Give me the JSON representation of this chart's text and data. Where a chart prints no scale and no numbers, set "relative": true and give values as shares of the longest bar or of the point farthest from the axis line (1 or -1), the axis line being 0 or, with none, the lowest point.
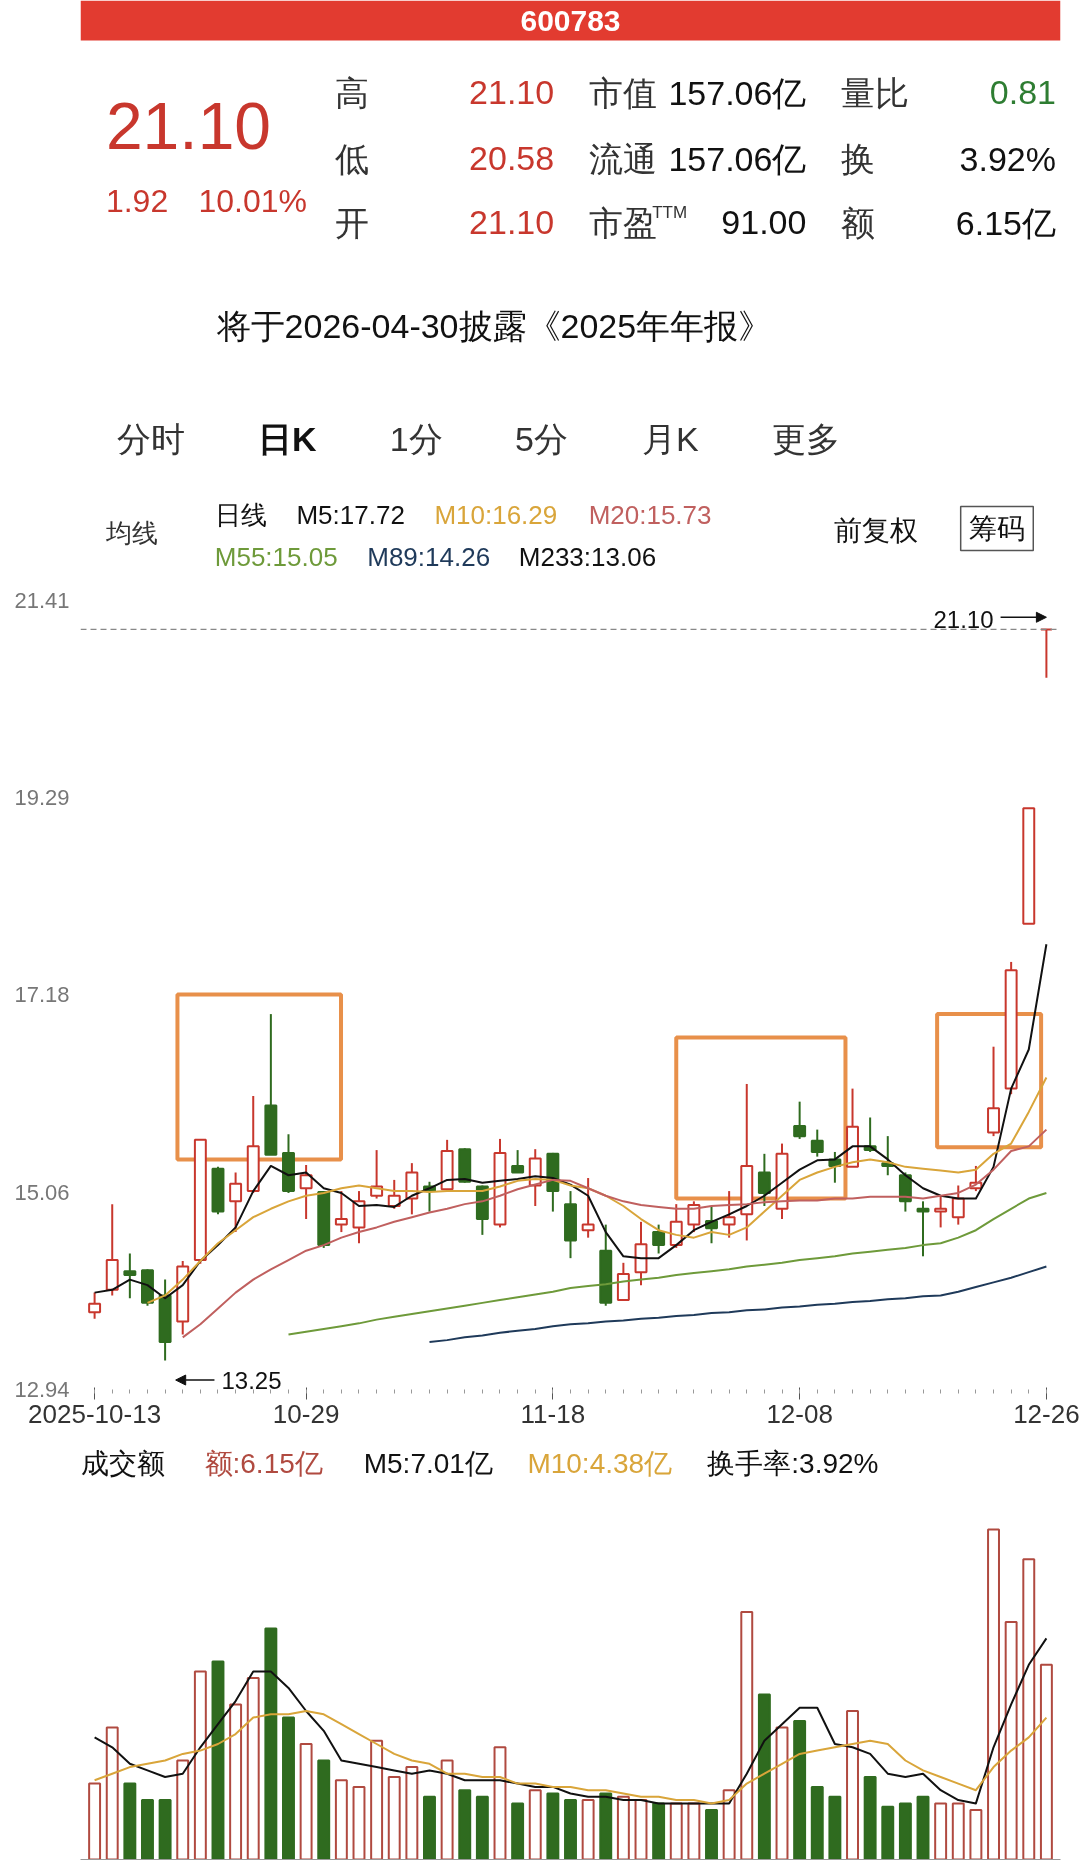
{
  "chart_data": [
    {
      "type": "other",
      "title": "600783",
      "annotations": [
        "21.10",
        "1.92",
        "10.01%",
        "高",
        "21.10",
        "市值",
        "157.06亿",
        "量比",
        "0.81",
        "低",
        "20.58",
        "流通",
        "157.06亿",
        "换",
        "3.92%",
        "开",
        "21.10",
        "市盈$^{TTM}$",
        "91.00",
        "额",
        "6.15亿",
        "将于2026-04-30披露《2025年年报》",
        "分时",
        "日K",
        "1分",
        "5分",
        "月K",
        "更多",
        "均线",
        "日线",
        "前复权",
        "筹码"
      ]
    },
    {
      "type": "candlestick",
      "categories": [
        "2025-10-13",
        null,
        null,
        null,
        null,
        null,
        null,
        null,
        null,
        null,
        null,
        null,
        "10-29",
        null,
        null,
        null,
        null,
        null,
        null,
        null,
        null,
        null,
        null,
        null,
        null,
        null,
        "11-18",
        null,
        null,
        null,
        null,
        null,
        null,
        null,
        null,
        null,
        null,
        null,
        null,
        null,
        "12-08",
        null,
        null,
        null,
        null,
        null,
        null,
        null,
        null,
        null,
        null,
        null,
        null,
        null,
        "12-26"
      ],
      "ohlc": [
        [
          13.77,
          13.98,
          13.7,
          13.86
        ],
        [
          14.01,
          14.93,
          13.95,
          14.33
        ],
        [
          14.21,
          14.4,
          13.92,
          14.17
        ],
        [
          14.22,
          14.23,
          13.84,
          13.87
        ],
        [
          13.95,
          14.12,
          13.25,
          13.45
        ],
        [
          13.67,
          14.32,
          13.53,
          14.26
        ],
        [
          14.33,
          15.63,
          14.29,
          15.62
        ],
        [
          15.31,
          15.33,
          14.82,
          14.85
        ],
        [
          14.96,
          15.27,
          14.63,
          15.15
        ],
        [
          15.07,
          16.09,
          15.05,
          15.55
        ],
        [
          15.99,
          16.97,
          15.46,
          15.46
        ],
        [
          15.48,
          15.68,
          15.05,
          15.07
        ],
        [
          15.1,
          15.35,
          14.77,
          15.24
        ],
        [
          15.06,
          15.07,
          14.46,
          14.49
        ],
        [
          14.71,
          15.07,
          14.63,
          14.77
        ],
        [
          14.68,
          15.07,
          14.51,
          14.96
        ],
        [
          15.02,
          15.51,
          14.99,
          15.12
        ],
        [
          14.91,
          15.19,
          14.88,
          15.02
        ],
        [
          14.99,
          15.37,
          14.82,
          15.27
        ],
        [
          15.12,
          15.17,
          14.85,
          15.07
        ],
        [
          15.09,
          15.62,
          15.07,
          15.5
        ],
        [
          15.52,
          15.53,
          15.16,
          15.17
        ],
        [
          15.12,
          15.13,
          14.6,
          14.77
        ],
        [
          14.71,
          15.63,
          14.68,
          15.48
        ],
        [
          15.34,
          15.51,
          15.27,
          15.27
        ],
        [
          15.13,
          15.52,
          14.91,
          15.42
        ],
        [
          15.47,
          15.48,
          14.85,
          15.07
        ],
        [
          14.93,
          15.07,
          14.35,
          14.54
        ],
        [
          14.65,
          15.21,
          14.57,
          14.71
        ],
        [
          14.43,
          14.71,
          13.84,
          13.87
        ],
        [
          13.9,
          14.3,
          13.9,
          14.18
        ],
        [
          14.2,
          14.74,
          14.06,
          14.5
        ],
        [
          14.63,
          14.71,
          14.4,
          14.49
        ],
        [
          14.49,
          14.93,
          14.46,
          14.74
        ],
        [
          14.71,
          14.96,
          14.63,
          14.92
        ],
        [
          14.75,
          14.91,
          14.51,
          14.67
        ],
        [
          14.71,
          15.07,
          14.57,
          14.79
        ],
        [
          14.82,
          16.22,
          14.54,
          15.34
        ],
        [
          15.27,
          15.47,
          14.91,
          15.05
        ],
        [
          14.88,
          15.58,
          14.77,
          15.47
        ],
        [
          15.77,
          16.03,
          15.63,
          15.66
        ],
        [
          15.61,
          15.73,
          15.44,
          15.49
        ],
        [
          15.41,
          15.49,
          15.16,
          15.34
        ],
        [
          15.33,
          16.17,
          15.33,
          15.76
        ],
        [
          15.55,
          15.86,
          15.49,
          15.51
        ],
        [
          15.37,
          15.66,
          15.24,
          15.34
        ],
        [
          15.24,
          15.27,
          14.85,
          14.96
        ],
        [
          14.88,
          14.96,
          14.37,
          14.85
        ],
        [
          14.85,
          15.02,
          14.68,
          14.88
        ],
        [
          14.79,
          15.13,
          14.71,
          14.99
        ],
        [
          15.1,
          15.34,
          15.07,
          15.16
        ],
        [
          15.7,
          16.62,
          15.66,
          15.96
        ],
        [
          16.17,
          17.53,
          16.11,
          17.44
        ],
        [
          17.94,
          19.18,
          17.94,
          19.18
        ],
        [
          21.1,
          21.1,
          20.58,
          21.1
        ]
      ],
      "colors": [
        "#c8372d",
        "#c8372d",
        "#2f6b1f",
        "#2f6b1f",
        "#2f6b1f",
        "#c8372d",
        "#c8372d",
        "#2f6b1f",
        "#c8372d",
        "#c8372d",
        "#2f6b1f",
        "#2f6b1f",
        "#c8372d",
        "#2f6b1f",
        "#c8372d",
        "#c8372d",
        "#c8372d",
        "#c8372d",
        "#c8372d",
        "#2f6b1f",
        "#c8372d",
        "#2f6b1f",
        "#2f6b1f",
        "#c8372d",
        "#2f6b1f",
        "#c8372d",
        "#2f6b1f",
        "#2f6b1f",
        "#c8372d",
        "#2f6b1f",
        "#c8372d",
        "#c8372d",
        "#2f6b1f",
        "#c8372d",
        "#c8372d",
        "#2f6b1f",
        "#c8372d",
        "#c8372d",
        "#2f6b1f",
        "#c8372d",
        "#2f6b1f",
        "#2f6b1f",
        "#2f6b1f",
        "#c8372d",
        "#2f6b1f",
        "#2f6b1f",
        "#2f6b1f",
        "#2f6b1f",
        "#c8372d",
        "#c8372d",
        "#c8372d",
        "#c8372d",
        "#c8372d",
        "#c8372d",
        "#c8372d"
      ],
      "ylim": [
        12.94,
        21.41
      ],
      "yticks": [
        12.94,
        15.06,
        17.18,
        19.29,
        21.41
      ],
      "series": [
        {
          "name": "M5:17.72",
          "type": "line",
          "color": "#111111",
          "values": [
            13.98,
            14.01,
            14.12,
            14.06,
            13.92,
            14.06,
            14.32,
            14.49,
            14.68,
            15.07,
            15.34,
            15.24,
            15.27,
            15.1,
            15.05,
            14.91,
            14.92,
            14.9,
            15.02,
            15.1,
            15.19,
            15.2,
            15.16,
            15.18,
            15.2,
            15.23,
            15.21,
            15.14,
            15.02,
            14.63,
            14.37,
            14.35,
            14.35,
            14.49,
            14.65,
            14.74,
            14.82,
            14.91,
            15.02,
            15.16,
            15.3,
            15.4,
            15.41,
            15.55,
            15.55,
            15.41,
            15.24,
            15.1,
            15.02,
            14.99,
            14.99,
            15.33,
            16.17,
            16.59,
            17.72
          ]
        },
        {
          "name": "M10:16.29",
          "type": "line",
          "color": "#d9a53a",
          "values": [
            null,
            null,
            null,
            13.87,
            13.95,
            14.12,
            14.32,
            14.51,
            14.65,
            14.79,
            14.88,
            14.96,
            15.02,
            15.05,
            15.1,
            15.13,
            15.1,
            15.07,
            15.07,
            15.06,
            15.07,
            15.07,
            15.07,
            15.12,
            15.18,
            15.2,
            15.19,
            15.13,
            15.1,
            15.02,
            14.91,
            14.77,
            14.65,
            14.6,
            14.57,
            14.63,
            14.6,
            14.68,
            14.85,
            15.02,
            15.19,
            15.27,
            15.33,
            15.38,
            15.41,
            15.38,
            15.33,
            15.31,
            15.29,
            15.27,
            15.3,
            15.47,
            15.58,
            15.92,
            16.29
          ]
        },
        {
          "name": "M20:15.73",
          "type": "line",
          "color": "#c0605f",
          "values": [
            null,
            null,
            null,
            null,
            null,
            13.5,
            13.64,
            13.81,
            13.98,
            14.12,
            14.23,
            14.33,
            14.43,
            14.49,
            14.57,
            14.63,
            14.68,
            14.74,
            14.79,
            14.84,
            14.88,
            14.93,
            14.96,
            15.02,
            15.09,
            15.14,
            15.19,
            15.18,
            15.1,
            15.02,
            14.96,
            14.92,
            14.9,
            14.88,
            14.88,
            14.91,
            14.92,
            14.93,
            14.95,
            14.96,
            14.97,
            14.97,
            14.99,
            14.99,
            15.01,
            15.01,
            15.01,
            14.99,
            15.02,
            15.05,
            15.14,
            15.3,
            15.5,
            15.55,
            15.73
          ]
        },
        {
          "name": "M55:15.05",
          "type": "line",
          "color": "#6e9a3a",
          "values": [
            null,
            null,
            null,
            null,
            null,
            null,
            null,
            null,
            null,
            null,
            null,
            13.53,
            13.56,
            13.59,
            13.62,
            13.65,
            13.69,
            13.72,
            13.75,
            13.78,
            13.81,
            13.84,
            13.87,
            13.9,
            13.93,
            13.96,
            13.99,
            14.03,
            14.05,
            14.07,
            14.1,
            14.12,
            14.14,
            14.17,
            14.19,
            14.21,
            14.23,
            14.26,
            14.28,
            14.3,
            14.33,
            14.35,
            14.37,
            14.4,
            14.42,
            14.44,
            14.46,
            14.49,
            14.51,
            14.57,
            14.65,
            14.77,
            14.88,
            14.99,
            15.05
          ]
        },
        {
          "name": "M89:14.26",
          "type": "line",
          "color": "#1f3a5a",
          "values": [
            null,
            null,
            null,
            null,
            null,
            null,
            null,
            null,
            null,
            null,
            null,
            null,
            null,
            null,
            null,
            null,
            null,
            null,
            null,
            13.45,
            13.47,
            13.5,
            13.52,
            13.55,
            13.57,
            13.59,
            13.62,
            13.64,
            13.65,
            13.67,
            13.68,
            13.7,
            13.71,
            13.73,
            13.74,
            13.76,
            13.77,
            13.79,
            13.8,
            13.82,
            13.83,
            13.85,
            13.86,
            13.88,
            13.89,
            13.91,
            13.92,
            13.94,
            13.95,
            13.99,
            14.04,
            14.09,
            14.14,
            14.2,
            14.26
          ]
        }
      ],
      "ref_lines": [
        {
          "axis": "y",
          "value": 21.1,
          "line_style": "dashed",
          "color": "#888888",
          "label": "21.10"
        }
      ],
      "annotations": [
        "M233:13.06",
        "13.25"
      ]
    },
    {
      "type": "bar",
      "title": "成交额",
      "relative": true,
      "categories": [
        null,
        null,
        null,
        null,
        null,
        null,
        null,
        null,
        null,
        null,
        null,
        null,
        null,
        null,
        null,
        null,
        null,
        null,
        null,
        null,
        null,
        null,
        null,
        null,
        null,
        null,
        null,
        null,
        null,
        null,
        null,
        null,
        null,
        null,
        null,
        null,
        null,
        null,
        null,
        null,
        null,
        null,
        null,
        null,
        null,
        null,
        null,
        null,
        null,
        null,
        null,
        null,
        null,
        null,
        null
      ],
      "series": [
        {
          "name": "额:6.15亿",
          "type": "bar",
          "colors": [
            "#b04a40",
            "#b04a40",
            "#2f6b1f",
            "#2f6b1f",
            "#2f6b1f",
            "#b04a40",
            "#b04a40",
            "#2f6b1f",
            "#b04a40",
            "#b04a40",
            "#2f6b1f",
            "#2f6b1f",
            "#b04a40",
            "#2f6b1f",
            "#b04a40",
            "#b04a40",
            "#b04a40",
            "#b04a40",
            "#b04a40",
            "#2f6b1f",
            "#b04a40",
            "#2f6b1f",
            "#2f6b1f",
            "#b04a40",
            "#2f6b1f",
            "#b04a40",
            "#2f6b1f",
            "#2f6b1f",
            "#b04a40",
            "#2f6b1f",
            "#b04a40",
            "#b04a40",
            "#2f6b1f",
            "#b04a40",
            "#b04a40",
            "#2f6b1f",
            "#b04a40",
            "#b04a40",
            "#2f6b1f",
            "#b04a40",
            "#2f6b1f",
            "#2f6b1f",
            "#2f6b1f",
            "#b04a40",
            "#2f6b1f",
            "#2f6b1f",
            "#2f6b1f",
            "#2f6b1f",
            "#b04a40",
            "#b04a40",
            "#b04a40",
            "#b04a40",
            "#b04a40",
            "#b04a40",
            "#b04a40"
          ],
          "values": [
            0.23,
            0.4,
            0.23,
            0.18,
            0.18,
            0.3,
            0.57,
            0.6,
            0.47,
            0.55,
            0.7,
            0.43,
            0.35,
            0.3,
            0.24,
            0.22,
            0.36,
            0.25,
            0.28,
            0.19,
            0.3,
            0.21,
            0.19,
            0.34,
            0.17,
            0.21,
            0.2,
            0.18,
            0.18,
            0.2,
            0.19,
            0.18,
            0.17,
            0.17,
            0.17,
            0.15,
            0.21,
            0.75,
            0.5,
            0.4,
            0.42,
            0.22,
            0.19,
            0.45,
            0.25,
            0.16,
            0.17,
            0.19,
            0.17,
            0.17,
            0.15,
            1,
            0.72,
            0.91,
            0.59
          ]
        },
        {
          "name": "M5:7.01亿",
          "type": "line",
          "color": "#111111",
          "values": [
            0.37,
            0.34,
            0.29,
            0.27,
            0.25,
            0.26,
            0.34,
            0.41,
            0.48,
            0.57,
            0.57,
            0.52,
            0.45,
            0.39,
            0.3,
            0.29,
            0.28,
            0.27,
            0.26,
            0.27,
            0.26,
            0.24,
            0.24,
            0.24,
            0.23,
            0.22,
            0.22,
            0.2,
            0.19,
            0.19,
            0.18,
            0.18,
            0.17,
            0.17,
            0.17,
            0.17,
            0.17,
            0.26,
            0.36,
            0.41,
            0.46,
            0.46,
            0.35,
            0.34,
            0.32,
            0.26,
            0.25,
            0.26,
            0.21,
            0.18,
            0.17,
            0.34,
            0.47,
            0.59,
            0.67
          ]
        },
        {
          "name": "M10:4.38亿",
          "type": "line",
          "color": "#d9a53a",
          "values": [
            0.24,
            0.26,
            0.28,
            0.29,
            0.3,
            0.32,
            0.33,
            0.35,
            0.38,
            0.43,
            0.44,
            0.44,
            0.45,
            0.44,
            0.41,
            0.38,
            0.35,
            0.32,
            0.3,
            0.29,
            0.26,
            0.26,
            0.25,
            0.25,
            0.23,
            0.23,
            0.22,
            0.22,
            0.21,
            0.21,
            0.2,
            0.19,
            0.19,
            0.18,
            0.18,
            0.17,
            0.18,
            0.23,
            0.26,
            0.29,
            0.32,
            0.33,
            0.34,
            0.35,
            0.36,
            0.35,
            0.3,
            0.27,
            0.25,
            0.23,
            0.21,
            0.28,
            0.33,
            0.37,
            0.43
          ]
        }
      ],
      "annotations": [
        "换手率:3.92%"
      ]
    }
  ]
}
